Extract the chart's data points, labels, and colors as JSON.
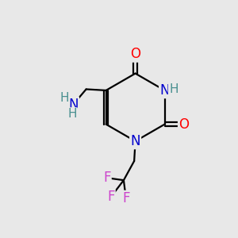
{
  "background_color": "#e8e8e8",
  "atom_colors": {
    "C": "#000000",
    "N": "#0000cd",
    "O": "#ff0000",
    "F": "#cc44cc",
    "H": "#4a9090"
  },
  "bond_color": "#000000",
  "bond_width": 1.6,
  "figsize": [
    3.0,
    3.0
  ],
  "dpi": 100
}
